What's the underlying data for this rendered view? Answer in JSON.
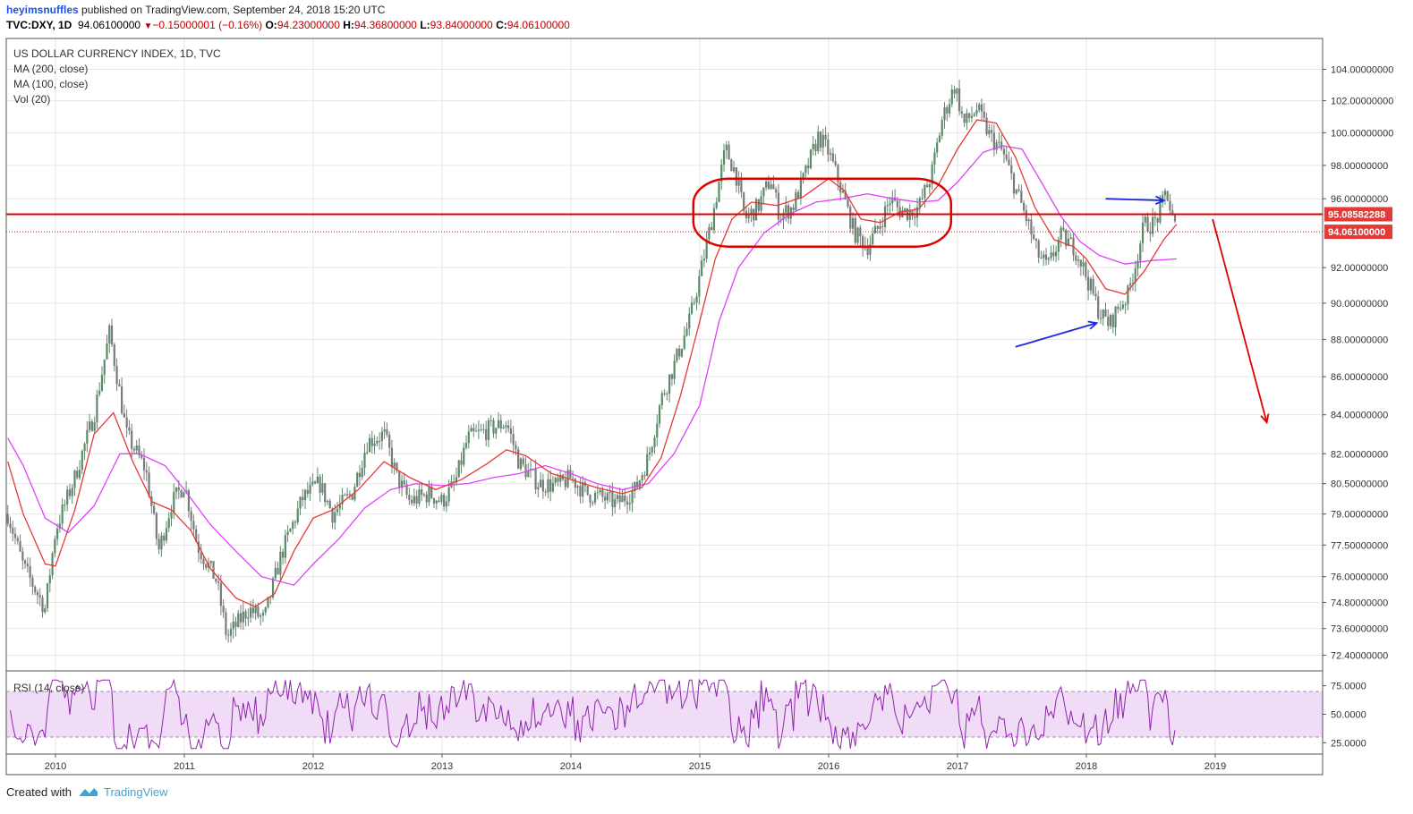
{
  "header": {
    "author": "heyimsnuffles",
    "published": "published on TradingView.com, September 24, 2018 15:20 UTC",
    "symbol": "TVC:DXY, 1D",
    "last": "94.06100000",
    "change": "−0.15000001 (−0.16%)",
    "o_key": "O:",
    "o_val": "94.23000000",
    "h_key": "H:",
    "h_val": "94.36800000",
    "l_key": "L:",
    "l_val": "93.84000000",
    "c_key": "C:",
    "c_val": "94.06100000"
  },
  "legend": {
    "title": "US DOLLAR CURRENCY INDEX, 1D, TVC",
    "ma200": "MA (200, close)",
    "ma100": "MA (100, close)",
    "vol": "Vol (20)",
    "rsi": "RSI (14, close)"
  },
  "footer": {
    "created": "Created with",
    "brand": "TradingView"
  },
  "colors": {
    "candle_up": "#5b8a6b",
    "candle_down": "#7a7a7a",
    "ma_red": "#e53935",
    "ma_pink": "#e040fb",
    "rsi_line": "#8e24aa",
    "rsi_band": "#f1dcf7",
    "resistance": "#e00000",
    "arrow_blue": "#1a27e0",
    "label_red": "#e53935"
  },
  "chart_data": {
    "type": "candlestick",
    "title": "US DOLLAR CURRENCY INDEX, 1D, TVC",
    "x_ticks": [
      "2010",
      "2011",
      "2012",
      "2013",
      "2014",
      "2015",
      "2016",
      "2017",
      "2018",
      "2019"
    ],
    "y_ticks": [
      "104.00000000",
      "102.00000000",
      "100.00000000",
      "98.00000000",
      "96.00000000",
      "92.00000000",
      "90.00000000",
      "88.00000000",
      "86.00000000",
      "84.00000000",
      "82.00000000",
      "80.50000000",
      "79.00000000",
      "77.50000000",
      "76.00000000",
      "74.80000000",
      "73.60000000",
      "72.40000000"
    ],
    "y_scale": "log",
    "y_range": [
      71.7,
      106.0
    ],
    "price_points": [
      [
        2009.63,
        79.0
      ],
      [
        2009.75,
        76.5
      ],
      [
        2009.92,
        74.5
      ],
      [
        2010.0,
        78.2
      ],
      [
        2010.15,
        80.8
      ],
      [
        2010.3,
        84.0
      ],
      [
        2010.42,
        88.4
      ],
      [
        2010.55,
        83.0
      ],
      [
        2010.7,
        81.2
      ],
      [
        2010.8,
        77.2
      ],
      [
        2010.9,
        79.5
      ],
      [
        2011.0,
        80.5
      ],
      [
        2011.1,
        77.5
      ],
      [
        2011.25,
        75.8
      ],
      [
        2011.33,
        73.2
      ],
      [
        2011.5,
        74.5
      ],
      [
        2011.62,
        74.0
      ],
      [
        2011.75,
        77.0
      ],
      [
        2011.92,
        79.8
      ],
      [
        2012.05,
        80.5
      ],
      [
        2012.15,
        79.0
      ],
      [
        2012.3,
        80.0
      ],
      [
        2012.42,
        82.6
      ],
      [
        2012.55,
        83.0
      ],
      [
        2012.65,
        80.8
      ],
      [
        2012.75,
        79.6
      ],
      [
        2012.9,
        80.0
      ],
      [
        2013.0,
        79.6
      ],
      [
        2013.1,
        80.5
      ],
      [
        2013.2,
        82.8
      ],
      [
        2013.35,
        83.2
      ],
      [
        2013.5,
        83.6
      ],
      [
        2013.6,
        81.5
      ],
      [
        2013.75,
        80.5
      ],
      [
        2013.9,
        80.4
      ],
      [
        2014.0,
        80.8
      ],
      [
        2014.12,
        80.0
      ],
      [
        2014.25,
        79.8
      ],
      [
        2014.35,
        79.5
      ],
      [
        2014.5,
        80.2
      ],
      [
        2014.6,
        81.8
      ],
      [
        2014.7,
        84.8
      ],
      [
        2014.8,
        86.6
      ],
      [
        2014.92,
        89.0
      ],
      [
        2015.0,
        91.5
      ],
      [
        2015.1,
        95.0
      ],
      [
        2015.2,
        99.0
      ],
      [
        2015.28,
        97.5
      ],
      [
        2015.35,
        94.8
      ],
      [
        2015.45,
        95.5
      ],
      [
        2015.55,
        97.2
      ],
      [
        2015.62,
        95.0
      ],
      [
        2015.72,
        95.5
      ],
      [
        2015.82,
        97.5
      ],
      [
        2015.92,
        99.8
      ],
      [
        2016.0,
        98.8
      ],
      [
        2016.1,
        96.5
      ],
      [
        2016.2,
        94.0
      ],
      [
        2016.3,
        93.2
      ],
      [
        2016.38,
        94.2
      ],
      [
        2016.48,
        96.0
      ],
      [
        2016.55,
        95.3
      ],
      [
        2016.62,
        95.2
      ],
      [
        2016.7,
        95.5
      ],
      [
        2016.8,
        97.5
      ],
      [
        2016.88,
        100.8
      ],
      [
        2016.98,
        103.0
      ],
      [
        2017.05,
        100.5
      ],
      [
        2017.15,
        101.5
      ],
      [
        2017.25,
        99.8
      ],
      [
        2017.35,
        98.8
      ],
      [
        2017.45,
        96.6
      ],
      [
        2017.55,
        94.5
      ],
      [
        2017.62,
        92.8
      ],
      [
        2017.7,
        92.0
      ],
      [
        2017.8,
        93.8
      ],
      [
        2017.9,
        93.2
      ],
      [
        2017.95,
        92.5
      ],
      [
        2018.0,
        91.5
      ],
      [
        2018.1,
        89.5
      ],
      [
        2018.18,
        88.8
      ],
      [
        2018.25,
        89.8
      ],
      [
        2018.32,
        90.4
      ],
      [
        2018.38,
        92.2
      ],
      [
        2018.45,
        94.5
      ],
      [
        2018.52,
        94.5
      ],
      [
        2018.58,
        95.3
      ],
      [
        2018.62,
        96.6
      ],
      [
        2018.66,
        95.0
      ],
      [
        2018.7,
        94.06
      ]
    ],
    "ma100_points": [
      [
        2009.63,
        81.6
      ],
      [
        2009.75,
        79.0
      ],
      [
        2009.92,
        76.6
      ],
      [
        2010.0,
        76.5
      ],
      [
        2010.15,
        79.2
      ],
      [
        2010.3,
        83.0
      ],
      [
        2010.45,
        84.1
      ],
      [
        2010.6,
        81.6
      ],
      [
        2010.75,
        79.6
      ],
      [
        2010.9,
        79.2
      ],
      [
        2011.05,
        78.2
      ],
      [
        2011.2,
        76.4
      ],
      [
        2011.4,
        75.0
      ],
      [
        2011.55,
        74.6
      ],
      [
        2011.7,
        75.2
      ],
      [
        2011.85,
        77.2
      ],
      [
        2012.0,
        78.8
      ],
      [
        2012.15,
        79.2
      ],
      [
        2012.35,
        80.2
      ],
      [
        2012.55,
        81.6
      ],
      [
        2012.75,
        80.8
      ],
      [
        2012.95,
        80.2
      ],
      [
        2013.15,
        80.7
      ],
      [
        2013.35,
        81.5
      ],
      [
        2013.5,
        82.2
      ],
      [
        2013.65,
        81.9
      ],
      [
        2013.85,
        81.0
      ],
      [
        2014.0,
        80.7
      ],
      [
        2014.2,
        80.3
      ],
      [
        2014.4,
        80.0
      ],
      [
        2014.55,
        80.3
      ],
      [
        2014.7,
        81.8
      ],
      [
        2014.85,
        85.0
      ],
      [
        2015.0,
        89.0
      ],
      [
        2015.12,
        92.5
      ],
      [
        2015.25,
        94.8
      ],
      [
        2015.4,
        95.8
      ],
      [
        2015.6,
        95.6
      ],
      [
        2015.8,
        96.1
      ],
      [
        2016.0,
        97.2
      ],
      [
        2016.12,
        96.5
      ],
      [
        2016.25,
        94.8
      ],
      [
        2016.4,
        94.6
      ],
      [
        2016.55,
        95.2
      ],
      [
        2016.7,
        95.4
      ],
      [
        2016.85,
        96.8
      ],
      [
        2017.0,
        99.0
      ],
      [
        2017.15,
        100.8
      ],
      [
        2017.3,
        100.6
      ],
      [
        2017.45,
        98.5
      ],
      [
        2017.6,
        95.5
      ],
      [
        2017.75,
        93.6
      ],
      [
        2017.9,
        93.2
      ],
      [
        2018.0,
        92.5
      ],
      [
        2018.15,
        90.8
      ],
      [
        2018.3,
        90.5
      ],
      [
        2018.45,
        91.8
      ],
      [
        2018.6,
        93.6
      ],
      [
        2018.7,
        94.5
      ]
    ],
    "ma200_points": [
      [
        2009.63,
        82.8
      ],
      [
        2009.75,
        81.4
      ],
      [
        2009.92,
        78.8
      ],
      [
        2010.1,
        78.1
      ],
      [
        2010.3,
        79.4
      ],
      [
        2010.5,
        82.0
      ],
      [
        2010.65,
        82.0
      ],
      [
        2010.85,
        81.4
      ],
      [
        2011.0,
        80.2
      ],
      [
        2011.2,
        78.5
      ],
      [
        2011.4,
        77.2
      ],
      [
        2011.6,
        76.0
      ],
      [
        2011.85,
        75.6
      ],
      [
        2012.0,
        76.6
      ],
      [
        2012.2,
        77.8
      ],
      [
        2012.4,
        79.3
      ],
      [
        2012.6,
        80.2
      ],
      [
        2012.8,
        80.5
      ],
      [
        2013.0,
        80.4
      ],
      [
        2013.2,
        80.5
      ],
      [
        2013.4,
        80.8
      ],
      [
        2013.6,
        81.0
      ],
      [
        2013.8,
        81.4
      ],
      [
        2014.0,
        81.0
      ],
      [
        2014.2,
        80.5
      ],
      [
        2014.4,
        80.2
      ],
      [
        2014.6,
        80.5
      ],
      [
        2014.8,
        82.0
      ],
      [
        2015.0,
        84.5
      ],
      [
        2015.15,
        89.0
      ],
      [
        2015.3,
        92.0
      ],
      [
        2015.5,
        94.0
      ],
      [
        2015.7,
        95.1
      ],
      [
        2015.9,
        95.8
      ],
      [
        2016.1,
        96.0
      ],
      [
        2016.3,
        96.3
      ],
      [
        2016.5,
        96.0
      ],
      [
        2016.7,
        95.8
      ],
      [
        2016.85,
        95.9
      ],
      [
        2017.0,
        97.0
      ],
      [
        2017.2,
        98.8
      ],
      [
        2017.35,
        99.2
      ],
      [
        2017.5,
        99.0
      ],
      [
        2017.65,
        97.0
      ],
      [
        2017.8,
        95.0
      ],
      [
        2017.95,
        93.5
      ],
      [
        2018.1,
        92.7
      ],
      [
        2018.3,
        92.2
      ],
      [
        2018.5,
        92.4
      ],
      [
        2018.7,
        92.5
      ]
    ],
    "resistance_value": 95.08582288,
    "last_value": 94.061,
    "rsi": {
      "y_ticks": [
        "75.0000",
        "50.0000",
        "25.0000"
      ],
      "bands": [
        70,
        30
      ],
      "last": 38
    },
    "annotations": [
      {
        "type": "horizontal_line",
        "value": 95.08582288,
        "label": "95.08582288"
      },
      {
        "type": "ellipse",
        "x_range": [
          2014.95,
          2016.95
        ],
        "y_range": [
          93.2,
          97.2
        ]
      },
      {
        "type": "arrow",
        "color": "blue",
        "from": [
          2018.15,
          96.0
        ],
        "to": [
          2018.6,
          95.9
        ]
      },
      {
        "type": "arrow",
        "color": "blue",
        "from": [
          2017.45,
          87.6
        ],
        "to": [
          2018.08,
          88.9
        ]
      },
      {
        "type": "arrow",
        "color": "red",
        "from": [
          2018.98,
          94.8
        ],
        "to": [
          2019.4,
          83.6
        ]
      }
    ]
  }
}
